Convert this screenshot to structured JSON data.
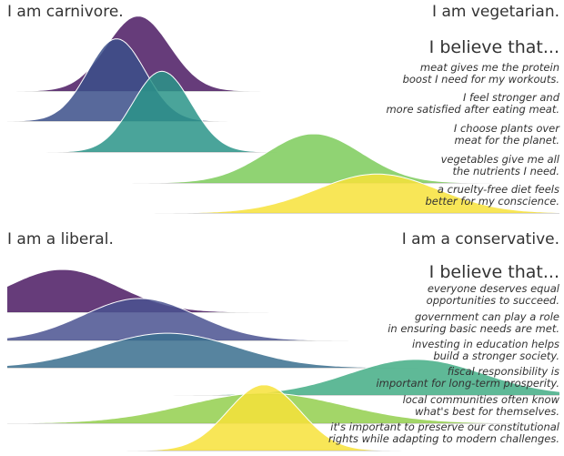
{
  "chart_data": [
    {
      "type": "ridgeline",
      "left_label": "I am carnivore.",
      "right_label": "I am vegetarian.",
      "heading": "I believe that...",
      "xlim": [
        0,
        1
      ],
      "series": [
        {
          "name": [
            "meat gives me the protein",
            "boost I need for my workouts."
          ],
          "color": "#4b1a63",
          "mean": 0.237,
          "sd": 0.057
        },
        {
          "name": [
            "I feel stronger and",
            "more satisfied after eating meat."
          ],
          "color": "#3b4f8a",
          "mean": 0.198,
          "sd": 0.052
        },
        {
          "name": [
            "I choose plants over",
            "meat for the planet."
          ],
          "color": "#2a9488",
          "mean": 0.28,
          "sd": 0.053
        },
        {
          "name": [
            "vegetables give me all",
            "the nutrients I need."
          ],
          "color": "#7ccb5a",
          "mean": 0.555,
          "sd": 0.087
        },
        {
          "name": [
            "a cruelty-free diet feels",
            "better for my conscience."
          ],
          "color": "#f7e23a",
          "mean": 0.67,
          "sd": 0.11
        }
      ]
    },
    {
      "type": "ridgeline",
      "left_label": "I am a liberal.",
      "right_label": "I am a conservative.",
      "heading": "I believe that...",
      "xlim": [
        0,
        1
      ],
      "series": [
        {
          "name": [
            "everyone deserves equal",
            "opportunities to succeed."
          ],
          "color": "#4b1a63",
          "mean": 0.1,
          "sd": 0.1
        },
        {
          "name": [
            "government can play a role",
            "in ensuring basic needs are met."
          ],
          "color": "#4a5290",
          "mean": 0.24,
          "sd": 0.102
        },
        {
          "name": [
            "investing in education helps",
            "build a stronger society."
          ],
          "color": "#3a6f8e",
          "mean": 0.29,
          "sd": 0.124
        },
        {
          "name": [
            "fiscal responsibility is",
            "important for long-term prosperity."
          ],
          "color": "#43ad85",
          "mean": 0.74,
          "sd": 0.12
        },
        {
          "name": [
            "local communities often know",
            "what's best for themselves."
          ],
          "color": "#93cf4e",
          "mean": 0.465,
          "sd": 0.142
        },
        {
          "name": [
            "it's important to preserve our constitutional",
            "rights while adapting to modern challenges."
          ],
          "color": "#f7e23a",
          "mean": 0.465,
          "sd": 0.065
        }
      ]
    }
  ]
}
